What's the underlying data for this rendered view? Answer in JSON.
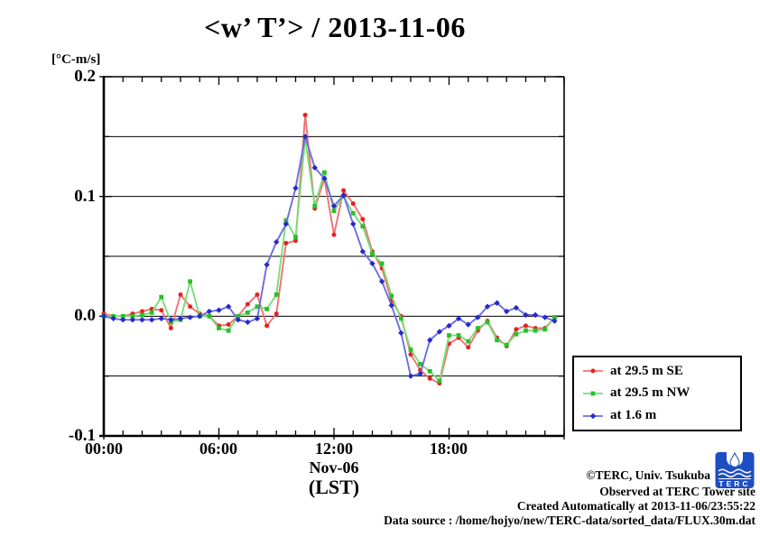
{
  "title": "<w’ T’> / 2013-11-06",
  "y_axis": {
    "unit_label": "[°C-m/s]",
    "tick_labels": [
      "0.2",
      "0.1",
      "0.0",
      "-0.1"
    ],
    "tick_values": [
      0.2,
      0.1,
      0.0,
      -0.1
    ]
  },
  "x_axis": {
    "tick_labels": [
      "00:00",
      "06:00",
      "12:00",
      "18:00"
    ],
    "tick_hours": [
      0,
      6,
      12,
      18
    ],
    "date_label": "Nov-06",
    "tz_label": "(LST)"
  },
  "footer": {
    "credit": "©TERC, Univ. Tsukuba",
    "observed": "Observed at TERC Tower site",
    "created": "Created Automatically at 2013-11-06/23:55:22",
    "source": "Data source : /home/hojyo/new/TERC-data/sorted_data/FLUX.30m.dat",
    "logo_text": "TERC",
    "logo_color": "#1e4fc2"
  },
  "chart_data": {
    "type": "line",
    "title": "<w’ T’> / 2013-11-06",
    "xlabel": "Nov-06 (LST)",
    "ylabel": "[°C-m/s]",
    "xlim": [
      0,
      24
    ],
    "ylim": [
      -0.1,
      0.2
    ],
    "grid_values": [
      0.15,
      0.1,
      0.05,
      0.0,
      -0.05
    ],
    "legend_position": "outside-right-bottom",
    "x_hours": [
      0,
      0.5,
      1,
      1.5,
      2,
      2.5,
      3,
      3.5,
      4,
      4.5,
      5,
      5.5,
      6,
      6.5,
      7,
      7.5,
      8,
      8.5,
      9,
      9.5,
      10,
      10.5,
      11,
      11.5,
      12,
      12.5,
      13,
      13.5,
      14,
      14.5,
      15,
      15.5,
      16,
      16.5,
      17,
      17.5,
      18,
      18.5,
      19,
      19.5,
      20,
      20.5,
      21,
      21.5,
      22,
      22.5,
      23,
      23.5
    ],
    "series": [
      {
        "label": "at 29.5 m SE",
        "color": "#e62222",
        "line_color": "#f07272",
        "marker": "circle",
        "values": [
          0.002,
          0.0,
          0.0,
          0.002,
          0.004,
          0.006,
          0.005,
          -0.01,
          0.018,
          0.008,
          0.002,
          0.0,
          -0.008,
          -0.007,
          0.0,
          0.01,
          0.018,
          -0.008,
          0.002,
          0.061,
          0.063,
          0.168,
          0.09,
          0.115,
          0.068,
          0.105,
          0.094,
          0.081,
          0.054,
          0.04,
          0.013,
          0.0,
          -0.032,
          -0.045,
          -0.052,
          -0.056,
          -0.023,
          -0.018,
          -0.026,
          -0.012,
          -0.004,
          -0.018,
          -0.025,
          -0.011,
          -0.008,
          -0.01,
          -0.01,
          -0.001
        ]
      },
      {
        "label": "at 29.5 m NW",
        "color": "#28c128",
        "line_color": "#79dd79",
        "marker": "square",
        "values": [
          0.0,
          0.0,
          0.0,
          0.0,
          0.001,
          0.003,
          0.016,
          -0.005,
          -0.003,
          0.029,
          0.0,
          0.0,
          -0.01,
          -0.012,
          0.0,
          0.003,
          0.008,
          0.006,
          0.018,
          0.08,
          0.066,
          0.148,
          0.092,
          0.12,
          0.088,
          0.1,
          0.086,
          0.075,
          0.052,
          0.044,
          0.017,
          -0.002,
          -0.028,
          -0.04,
          -0.046,
          -0.054,
          -0.016,
          -0.016,
          -0.021,
          -0.01,
          -0.005,
          -0.02,
          -0.024,
          -0.015,
          -0.012,
          -0.012,
          -0.011,
          -0.001
        ]
      },
      {
        "label": "at 1.6 m",
        "color": "#2828cc",
        "line_color": "#6d6de2",
        "marker": "diamond",
        "values": [
          0.0,
          -0.002,
          -0.003,
          -0.003,
          -0.003,
          -0.003,
          -0.002,
          -0.003,
          -0.002,
          -0.001,
          0.0,
          0.004,
          0.005,
          0.008,
          -0.003,
          -0.005,
          -0.002,
          0.043,
          0.062,
          0.077,
          0.107,
          0.15,
          0.124,
          0.115,
          0.092,
          0.101,
          0.077,
          0.054,
          0.044,
          0.029,
          0.009,
          -0.014,
          -0.05,
          -0.048,
          -0.02,
          -0.013,
          -0.008,
          -0.002,
          -0.007,
          -0.001,
          0.008,
          0.011,
          0.004,
          0.007,
          0.001,
          0.001,
          -0.001,
          -0.004
        ]
      }
    ]
  }
}
